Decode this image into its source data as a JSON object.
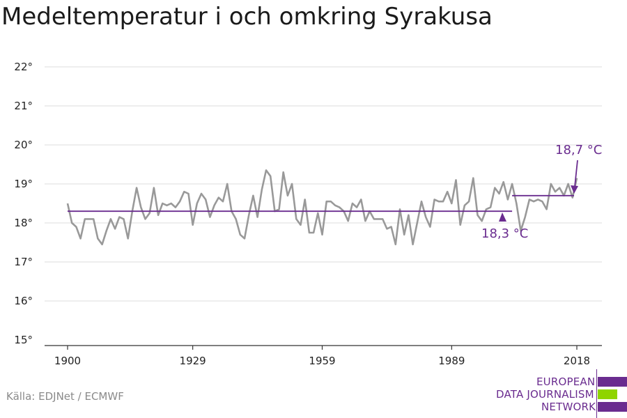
{
  "chart_data": {
    "type": "line",
    "title": "Medeltemperatur i och omkring Syrakusa",
    "ylim": [
      15,
      22
    ],
    "yticks": [
      {
        "value": 15,
        "label": "15°"
      },
      {
        "value": 16,
        "label": "16°"
      },
      {
        "value": 17,
        "label": "17°"
      },
      {
        "value": 18,
        "label": "18°"
      },
      {
        "value": 19,
        "label": "19°"
      },
      {
        "value": 20,
        "label": "20°"
      },
      {
        "value": 21,
        "label": "21°"
      },
      {
        "value": 22,
        "label": "22°"
      }
    ],
    "xlim": [
      1900,
      2018
    ],
    "xticks": [
      {
        "value": 1900,
        "label": "1900"
      },
      {
        "value": 1929,
        "label": "1929"
      },
      {
        "value": 1959,
        "label": "1959"
      },
      {
        "value": 1989,
        "label": "1989"
      },
      {
        "value": 2018,
        "label": "2018"
      }
    ],
    "series": [
      {
        "color": "#999999",
        "x": [
          1900,
          1901,
          1902,
          1903,
          1904,
          1905,
          1906,
          1907,
          1908,
          1909,
          1910,
          1911,
          1912,
          1913,
          1914,
          1915,
          1916,
          1917,
          1918,
          1919,
          1920,
          1921,
          1922,
          1923,
          1924,
          1925,
          1926,
          1927,
          1928,
          1929,
          1930,
          1931,
          1932,
          1933,
          1934,
          1935,
          1936,
          1937,
          1938,
          1939,
          1940,
          1941,
          1942,
          1943,
          1944,
          1945,
          1946,
          1947,
          1948,
          1949,
          1950,
          1951,
          1952,
          1953,
          1954,
          1955,
          1956,
          1957,
          1958,
          1959,
          1960,
          1961,
          1962,
          1963,
          1964,
          1965,
          1966,
          1967,
          1968,
          1969,
          1970,
          1971,
          1972,
          1973,
          1974,
          1975,
          1976,
          1977,
          1978,
          1979,
          1980,
          1981,
          1982,
          1983,
          1984,
          1985,
          1986,
          1987,
          1988,
          1989,
          1990,
          1991,
          1992,
          1993,
          1994,
          1995,
          1996,
          1997,
          1998,
          1999,
          2000,
          2001,
          2002,
          2003,
          2004,
          2005,
          2006,
          2007,
          2008,
          2009,
          2010,
          2011,
          2012,
          2013,
          2014,
          2015,
          2016,
          2017,
          2018
        ],
        "values": [
          18.5,
          18.0,
          17.9,
          17.6,
          18.1,
          18.1,
          18.1,
          17.6,
          17.45,
          17.8,
          18.1,
          17.85,
          18.15,
          18.1,
          17.6,
          18.3,
          18.9,
          18.4,
          18.1,
          18.25,
          18.9,
          18.2,
          18.5,
          18.45,
          18.5,
          18.4,
          18.55,
          18.8,
          18.75,
          17.95,
          18.5,
          18.75,
          18.6,
          18.15,
          18.45,
          18.65,
          18.55,
          19.0,
          18.3,
          18.1,
          17.7,
          17.6,
          18.2,
          18.7,
          18.15,
          18.85,
          19.35,
          19.2,
          18.3,
          18.35,
          19.3,
          18.7,
          19.0,
          18.1,
          17.95,
          18.6,
          17.75,
          17.75,
          18.25,
          17.7,
          18.55,
          18.55,
          18.45,
          18.4,
          18.3,
          18.05,
          18.5,
          18.4,
          18.6,
          18.05,
          18.3,
          18.1,
          18.1,
          18.1,
          17.85,
          17.9,
          17.45,
          18.35,
          17.7,
          18.2,
          17.45,
          18.0,
          18.55,
          18.15,
          17.9,
          18.6,
          18.55,
          18.55,
          18.8,
          18.5,
          19.1,
          17.95,
          18.45,
          18.55,
          19.15,
          18.2,
          18.05,
          18.35,
          18.4,
          18.9,
          18.75,
          19.05,
          18.6,
          19.0,
          18.5,
          17.8,
          18.15,
          18.6,
          18.55,
          18.6,
          18.55,
          18.35,
          19.0,
          18.8,
          18.9,
          18.7,
          19.0,
          18.65,
          19.15
        ]
      }
    ],
    "reference_lines": [
      {
        "x_start": 1900,
        "x_end": 2003,
        "value": 18.3,
        "color": "#6a2c8f"
      },
      {
        "x_start": 2003,
        "x_end": 2018,
        "value": 18.7,
        "color": "#6a2c8f"
      }
    ],
    "annotations": [
      {
        "text": "18,3 °C",
        "color": "#6a2c8f"
      },
      {
        "text": "18,7 °C",
        "color": "#6a2c8f"
      }
    ],
    "grid": true
  },
  "source": "Källa: EDJNet / ECMWF",
  "logo": {
    "lines": [
      "EUROPEAN",
      "DATA JOURNALISM",
      "NETWORK"
    ],
    "colors": {
      "purple": "#6a2c8f",
      "green": "#8fd400"
    }
  }
}
